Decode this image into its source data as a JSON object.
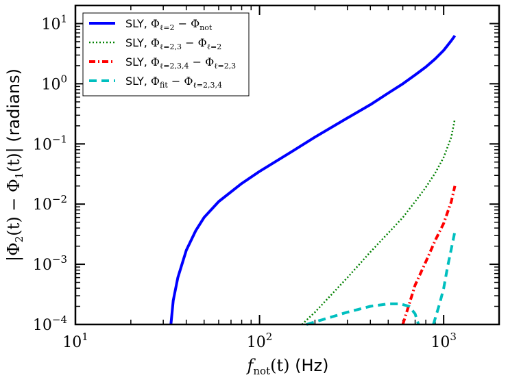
{
  "chart_data": {
    "type": "line",
    "x_scale": "log",
    "y_scale": "log",
    "xlim": [
      10,
      2000
    ],
    "ylim": [
      0.0001,
      20
    ],
    "xticks": [
      {
        "value": 10,
        "label": "10",
        "exp": "1"
      },
      {
        "value": 100,
        "label": "10",
        "exp": "2"
      },
      {
        "value": 1000,
        "label": "10",
        "exp": "3"
      }
    ],
    "yticks": [
      {
        "value": 0.0001,
        "label": "10",
        "exp": "−4"
      },
      {
        "value": 0.001,
        "label": "10",
        "exp": "−3"
      },
      {
        "value": 0.01,
        "label": "10",
        "exp": "−2"
      },
      {
        "value": 0.1,
        "label": "10",
        "exp": "−1"
      },
      {
        "value": 1,
        "label": "10",
        "exp": "0"
      },
      {
        "value": 10,
        "label": "10",
        "exp": "1"
      }
    ],
    "xlabel": "f_not(t) (Hz)",
    "ylabel": "|Φ2(t) − Φ1(t)| (radians)",
    "legend_position": "top-left",
    "series": [
      {
        "name": "SLY, Φℓ=2 − Φnot",
        "color": "#0000ff",
        "style": "solid",
        "points": [
          [
            33,
            0.0001
          ],
          [
            34,
            0.00025
          ],
          [
            36,
            0.0006
          ],
          [
            40,
            0.0017
          ],
          [
            45,
            0.0036
          ],
          [
            50,
            0.006
          ],
          [
            60,
            0.011
          ],
          [
            80,
            0.022
          ],
          [
            100,
            0.035
          ],
          [
            150,
            0.075
          ],
          [
            200,
            0.13
          ],
          [
            300,
            0.27
          ],
          [
            400,
            0.45
          ],
          [
            500,
            0.7
          ],
          [
            600,
            1.0
          ],
          [
            700,
            1.4
          ],
          [
            800,
            1.9
          ],
          [
            900,
            2.6
          ],
          [
            1000,
            3.6
          ],
          [
            1100,
            5.2
          ],
          [
            1150,
            6.3
          ]
        ]
      },
      {
        "name": "SLY, Φℓ=2,3 − Φℓ=2",
        "color": "#008000",
        "style": "dotted",
        "points": [
          [
            170,
            0.0001
          ],
          [
            200,
            0.00016
          ],
          [
            300,
            0.0006
          ],
          [
            400,
            0.0016
          ],
          [
            500,
            0.0033
          ],
          [
            600,
            0.006
          ],
          [
            700,
            0.011
          ],
          [
            800,
            0.019
          ],
          [
            900,
            0.033
          ],
          [
            1000,
            0.06
          ],
          [
            1100,
            0.13
          ],
          [
            1150,
            0.26
          ]
        ]
      },
      {
        "name": "SLY, Φℓ=2,3,4 − Φℓ=2,3",
        "color": "#ff0000",
        "style": "dashdot",
        "points": [
          [
            600,
            0.0001
          ],
          [
            700,
            0.00045
          ],
          [
            800,
            0.0011
          ],
          [
            900,
            0.0025
          ],
          [
            1000,
            0.0048
          ],
          [
            1100,
            0.011
          ],
          [
            1150,
            0.02
          ]
        ]
      },
      {
        "name": "SLY, Φfit − Φℓ=2,3,4",
        "color": "#00bfbf",
        "style": "dashed",
        "segments": [
          [
            [
              180,
              0.0001
            ],
            [
              220,
              0.00012
            ],
            [
              300,
              0.00016
            ],
            [
              400,
              0.0002
            ],
            [
              500,
              0.00022
            ],
            [
              580,
              0.00022
            ],
            [
              650,
              0.0002
            ],
            [
              700,
              0.00015
            ],
            [
              730,
              0.0001
            ]
          ],
          [
            [
              880,
              0.0001
            ],
            [
              950,
              0.00022
            ],
            [
              1000,
              0.0004
            ],
            [
              1050,
              0.0009
            ],
            [
              1100,
              0.0018
            ],
            [
              1150,
              0.0035
            ]
          ]
        ]
      }
    ]
  },
  "legend": {
    "entries": [
      {
        "prefix": "SLY, ",
        "main": "Φ",
        "sub": "ℓ=2",
        "minus": " − ",
        "main2": "Φ",
        "sub2": "not"
      },
      {
        "prefix": "SLY, ",
        "main": "Φ",
        "sub": "ℓ=2,3",
        "minus": " − ",
        "main2": "Φ",
        "sub2": "ℓ=2"
      },
      {
        "prefix": "SLY, ",
        "main": "Φ",
        "sub": "ℓ=2,3,4",
        "minus": " − ",
        "main2": "Φ",
        "sub2": "ℓ=2,3"
      },
      {
        "prefix": "SLY, ",
        "main": "Φ",
        "sub": "fit",
        "minus": " − ",
        "main2": "Φ",
        "sub2": "ℓ=2,3,4"
      }
    ]
  },
  "axis_titles": {
    "x": {
      "f": "f",
      "sub": "not",
      "paren": "(t)",
      "unit": " (Hz)"
    },
    "y": {
      "bar1": "|Φ",
      "sub1": "2",
      "mid": "(t) − Φ",
      "sub2": "1",
      "end": "(t)|",
      "unit": " (radians)"
    }
  }
}
